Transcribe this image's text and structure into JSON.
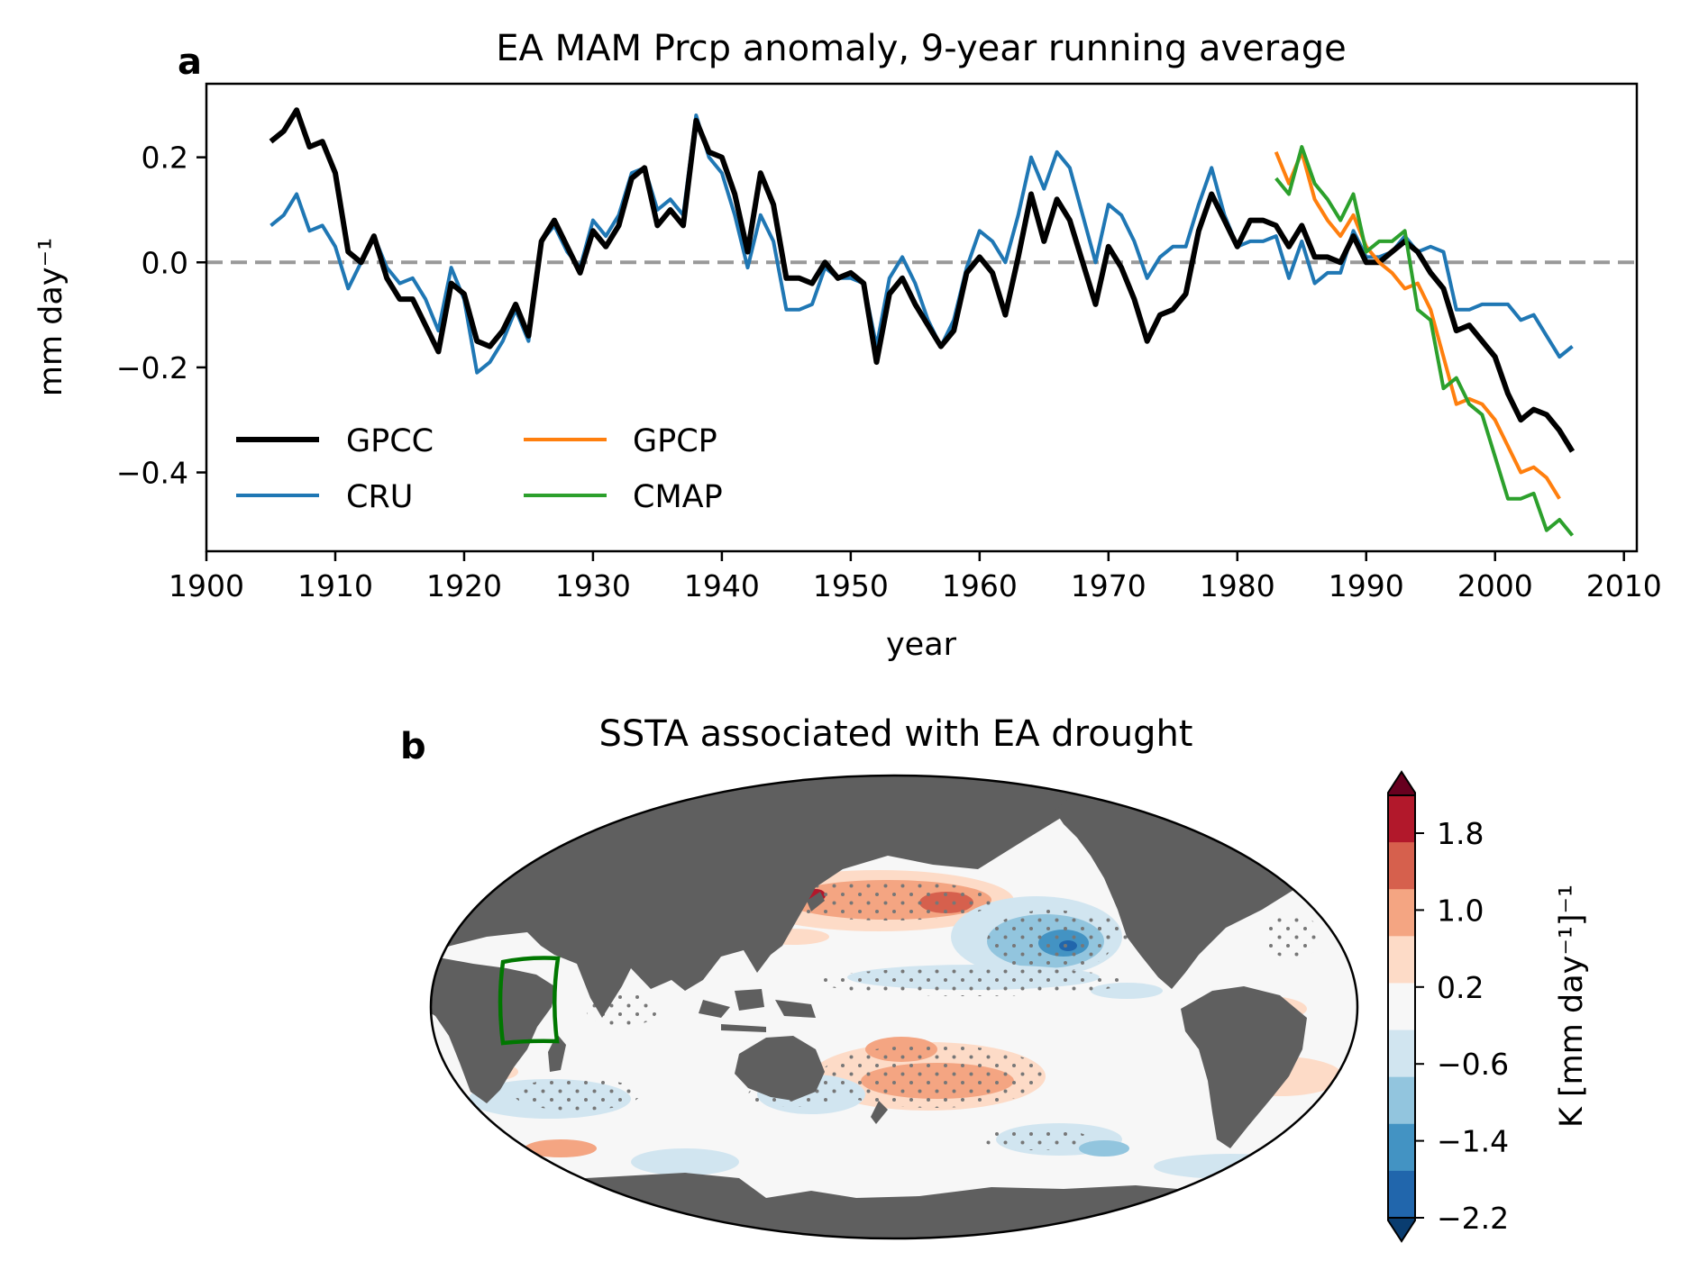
{
  "chart_data": [
    {
      "panel": "a",
      "type": "line",
      "title": "EA MAM Prcp anomaly, 9-year running average",
      "xlabel": "year",
      "ylabel": "mm day⁻¹",
      "xlim": [
        1900,
        2011
      ],
      "ylim": [
        -0.55,
        0.34
      ],
      "xticks": [
        1900,
        1910,
        1920,
        1930,
        1940,
        1950,
        1960,
        1970,
        1980,
        1990,
        2000,
        2010
      ],
      "yticks": [
        0.2,
        0.0,
        -0.2,
        -0.4
      ],
      "ytick_labels": [
        "0.2",
        "0.0",
        "−0.2",
        "−0.4"
      ],
      "reference_line": {
        "y": 0.0,
        "style": "dashed",
        "color": "#999999"
      },
      "legend_placement": "lower-left",
      "series": [
        {
          "name": "GPCC",
          "color": "#000000",
          "x_start": 1905,
          "values": [
            0.23,
            0.25,
            0.29,
            0.22,
            0.23,
            0.17,
            0.02,
            0.0,
            0.05,
            -0.03,
            -0.07,
            -0.07,
            -0.12,
            -0.17,
            -0.04,
            -0.06,
            -0.15,
            -0.16,
            -0.13,
            -0.08,
            -0.14,
            0.04,
            0.08,
            0.03,
            -0.02,
            0.06,
            0.03,
            0.07,
            0.16,
            0.18,
            0.07,
            0.1,
            0.07,
            0.27,
            0.21,
            0.2,
            0.13,
            0.02,
            0.17,
            0.11,
            -0.03,
            -0.03,
            -0.04,
            0.0,
            -0.03,
            -0.02,
            -0.04,
            -0.19,
            -0.06,
            -0.03,
            -0.08,
            -0.12,
            -0.16,
            -0.13,
            -0.02,
            0.01,
            -0.02,
            -0.1,
            0.01,
            0.13,
            0.04,
            0.12,
            0.08,
            0.0,
            -0.08,
            0.03,
            -0.01,
            -0.07,
            -0.15,
            -0.1,
            -0.09,
            -0.06,
            0.06,
            0.13,
            0.08,
            0.03,
            0.08,
            0.08,
            0.07,
            0.03,
            0.07,
            0.01,
            0.01,
            0.0,
            0.05,
            0.0,
            0.0,
            0.02,
            0.04,
            0.02,
            -0.02,
            -0.05,
            -0.13,
            -0.12,
            -0.15,
            -0.18,
            -0.25,
            -0.3,
            -0.28,
            -0.29,
            -0.32,
            -0.36
          ]
        },
        {
          "name": "CRU",
          "color": "#1f77b4",
          "x_start": 1905,
          "values": [
            0.07,
            0.09,
            0.13,
            0.06,
            0.07,
            0.03,
            -0.05,
            0.0,
            0.05,
            -0.01,
            -0.04,
            -0.03,
            -0.07,
            -0.13,
            -0.01,
            -0.07,
            -0.21,
            -0.19,
            -0.15,
            -0.09,
            -0.15,
            0.04,
            0.07,
            0.02,
            -0.01,
            0.08,
            0.05,
            0.09,
            0.17,
            0.18,
            0.1,
            0.12,
            0.09,
            0.28,
            0.2,
            0.17,
            0.09,
            -0.01,
            0.09,
            0.04,
            -0.09,
            -0.09,
            -0.08,
            -0.01,
            -0.03,
            -0.03,
            -0.04,
            -0.16,
            -0.03,
            0.01,
            -0.04,
            -0.11,
            -0.16,
            -0.11,
            -0.01,
            0.06,
            0.04,
            0.0,
            0.09,
            0.2,
            0.14,
            0.21,
            0.18,
            0.09,
            0.0,
            0.11,
            0.09,
            0.04,
            -0.03,
            0.01,
            0.03,
            0.03,
            0.11,
            0.18,
            0.09,
            0.03,
            0.04,
            0.04,
            0.05,
            -0.03,
            0.04,
            -0.04,
            -0.02,
            -0.02,
            0.06,
            0.01,
            0.01,
            0.02,
            0.05,
            0.02,
            0.03,
            0.02,
            -0.09,
            -0.09,
            -0.08,
            -0.08,
            -0.08,
            -0.11,
            -0.1,
            -0.14,
            -0.18,
            -0.16
          ]
        },
        {
          "name": "GPCP",
          "color": "#ff7f0e",
          "x_start": 1983,
          "values": [
            0.21,
            0.15,
            0.21,
            0.12,
            0.08,
            0.05,
            0.09,
            0.03,
            0.0,
            -0.02,
            -0.05,
            -0.04,
            -0.09,
            -0.18,
            -0.27,
            -0.26,
            -0.27,
            -0.3,
            -0.35,
            -0.4,
            -0.39,
            -0.41,
            -0.45
          ]
        },
        {
          "name": "CMAP",
          "color": "#2ca02c",
          "x_start": 1983,
          "values": [
            0.16,
            0.13,
            0.22,
            0.15,
            0.12,
            0.08,
            0.13,
            0.02,
            0.04,
            0.04,
            0.06,
            -0.09,
            -0.11,
            -0.24,
            -0.22,
            -0.27,
            -0.29,
            -0.37,
            -0.45,
            -0.45,
            -0.44,
            -0.51,
            -0.49,
            -0.52
          ]
        }
      ]
    },
    {
      "panel": "b",
      "type": "heatmap",
      "title": "SSTA associated with EA drought",
      "projection": "Mollweide (Pacific-centered)",
      "colorbar_label": "K [mm day⁻¹]⁻¹",
      "colorbar_ticks": [
        "1.8",
        "1.0",
        "0.2",
        "−0.6",
        "−1.4",
        "−2.2"
      ],
      "colorbar_range": [
        -2.2,
        2.2
      ],
      "colormap": [
        "#0a3d70",
        "#2166ac",
        "#4393c3",
        "#92c5de",
        "#d1e5f0",
        "#f7f7f7",
        "#fddbc7",
        "#f4a582",
        "#d6604d",
        "#b2182b",
        "#67001f"
      ],
      "land_color": "#5f5f5f",
      "region_box_color": "#007700",
      "stippling": "significant grid points"
    }
  ],
  "labels": {
    "panel_a": "a",
    "panel_b": "b"
  }
}
